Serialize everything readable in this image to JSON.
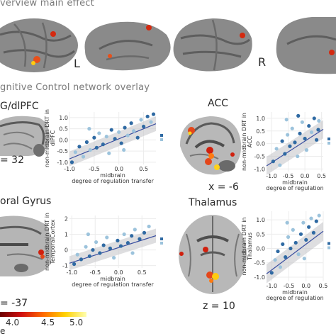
{
  "header": {
    "main_effect_title": "verview main effect",
    "network_overlay_title": "gnitive Control network overlay",
    "left_label": "L",
    "right_label": "R"
  },
  "panels": {
    "dlpfc": {
      "title": "G/dlPFC",
      "coord": "= 32"
    },
    "acc": {
      "title": "ACC",
      "coord": "x = -6"
    },
    "temporal": {
      "title": "oral Gyrus",
      "coord": "= -37"
    },
    "thalamus": {
      "title": "Thalamus",
      "coord": "z = 10"
    }
  },
  "colorbar": {
    "ticks": [
      "4.0",
      "4.5",
      "5.0"
    ],
    "corner_label": "e",
    "colors": [
      "#6a0000",
      "#d01010",
      "#ff6a00",
      "#ffd000",
      "#ffffb0"
    ]
  },
  "colors": {
    "brain": "#8a8a8a",
    "sulci": "#5e5e5e",
    "point_dark": "#2f6aa3",
    "point_light": "#9cc3dc",
    "regression_line": "#3b4fa0",
    "ci_band": "#c8c8cc"
  },
  "chart_data": [
    {
      "type": "scatter",
      "panel": "dlpfc",
      "title": "",
      "xlabel": "midbrain\ndegree of regulation transfer",
      "ylabel": "non-midbrain DRT in\ndlPFC",
      "xlabel_lines": [
        "midbrain",
        "degree of regulation transfer"
      ],
      "ylabel_lines": [
        "non-midbrain DRT in",
        "dlPFC"
      ],
      "xlim": [
        -1.0,
        0.75
      ],
      "ylim": [
        -1.1,
        1.25
      ],
      "xticks": [
        "-1.0",
        "-0.5",
        "0.0",
        "0.5"
      ],
      "xtick_values": [
        -1.0,
        -0.5,
        0.0,
        0.5
      ],
      "yticks": [
        "-1.0",
        "-0.5",
        "0.0",
        "0.5",
        "1.0"
      ],
      "ytick_values": [
        -1.0,
        -0.5,
        0.0,
        0.5,
        1.0
      ],
      "fit": {
        "slope": 0.9,
        "intercept": 0.05,
        "ci": 0.22
      },
      "points": [
        {
          "x": -0.95,
          "y": -1.0,
          "g": 0
        },
        {
          "x": -0.88,
          "y": -0.55,
          "g": 1
        },
        {
          "x": -0.8,
          "y": -0.3,
          "g": 0
        },
        {
          "x": -0.72,
          "y": -0.75,
          "g": 1
        },
        {
          "x": -0.65,
          "y": -0.1,
          "g": 0
        },
        {
          "x": -0.58,
          "y": -0.45,
          "g": 1
        },
        {
          "x": -0.5,
          "y": 0.1,
          "g": 0
        },
        {
          "x": -0.45,
          "y": -0.35,
          "g": 0
        },
        {
          "x": -0.4,
          "y": 0.3,
          "g": 1
        },
        {
          "x": -0.32,
          "y": -0.2,
          "g": 0
        },
        {
          "x": -0.25,
          "y": 0.15,
          "g": 1
        },
        {
          "x": -0.2,
          "y": -0.6,
          "g": 1
        },
        {
          "x": -0.15,
          "y": 0.45,
          "g": 0
        },
        {
          "x": -0.08,
          "y": 0.05,
          "g": 0
        },
        {
          "x": 0.0,
          "y": 0.35,
          "g": 1
        },
        {
          "x": 0.05,
          "y": -0.15,
          "g": 0
        },
        {
          "x": 0.12,
          "y": 0.55,
          "g": 0
        },
        {
          "x": 0.18,
          "y": 0.2,
          "g": 1
        },
        {
          "x": 0.25,
          "y": 0.75,
          "g": 0
        },
        {
          "x": 0.3,
          "y": 0.4,
          "g": 1
        },
        {
          "x": 0.38,
          "y": 0.1,
          "g": 0
        },
        {
          "x": 0.45,
          "y": 0.9,
          "g": 1
        },
        {
          "x": 0.5,
          "y": 0.6,
          "g": 0
        },
        {
          "x": 0.58,
          "y": 1.05,
          "g": 0
        },
        {
          "x": 0.65,
          "y": 0.8,
          "g": 1
        },
        {
          "x": -0.6,
          "y": 0.5,
          "g": 1
        },
        {
          "x": 0.1,
          "y": -0.45,
          "g": 1
        },
        {
          "x": 0.7,
          "y": 1.15,
          "g": 0
        }
      ]
    },
    {
      "type": "scatter",
      "panel": "acc",
      "title": "",
      "xlabel": "midbrain\ndegree of regulation",
      "ylabel": "non-midbrain DRT in\nACC",
      "xlabel_lines": [
        "midbrain",
        "degree of regulation"
      ],
      "ylabel_lines": [
        "non-midbrain DRT in",
        "ACC"
      ],
      "xlim": [
        -1.15,
        0.55
      ],
      "ylim": [
        -1.1,
        1.25
      ],
      "xticks": [
        "-1.0",
        "-0.5",
        "0.0",
        "0.5"
      ],
      "xtick_values": [
        -1.0,
        -0.5,
        0.0,
        0.5
      ],
      "yticks": [
        "-1.0",
        "-0.5",
        "0.0",
        "0.5",
        "1.0"
      ],
      "ytick_values": [
        -1.0,
        -0.5,
        0.0,
        0.5,
        1.0
      ],
      "fit": {
        "slope": 0.85,
        "intercept": 0.1,
        "ci": 0.24
      },
      "points": [
        {
          "x": -0.95,
          "y": -0.7,
          "g": 0
        },
        {
          "x": -0.85,
          "y": -0.2,
          "g": 1
        },
        {
          "x": -0.75,
          "y": -0.85,
          "g": 1
        },
        {
          "x": -0.68,
          "y": 0.1,
          "g": 0
        },
        {
          "x": -0.6,
          "y": -0.4,
          "g": 0
        },
        {
          "x": -0.52,
          "y": 0.35,
          "g": 1
        },
        {
          "x": -0.45,
          "y": -0.1,
          "g": 0
        },
        {
          "x": -0.38,
          "y": 0.6,
          "g": 1
        },
        {
          "x": -0.3,
          "y": 0.05,
          "g": 0
        },
        {
          "x": -0.22,
          "y": -0.5,
          "g": 1
        },
        {
          "x": -0.15,
          "y": 0.4,
          "g": 0
        },
        {
          "x": -0.08,
          "y": 0.85,
          "g": 1
        },
        {
          "x": 0.0,
          "y": 0.2,
          "g": 0
        },
        {
          "x": 0.05,
          "y": -0.25,
          "g": 1
        },
        {
          "x": 0.12,
          "y": 0.7,
          "g": 0
        },
        {
          "x": 0.2,
          "y": 0.45,
          "g": 1
        },
        {
          "x": 0.28,
          "y": 1.0,
          "g": 0
        },
        {
          "x": 0.35,
          "y": 0.15,
          "g": 0
        },
        {
          "x": 0.42,
          "y": 0.9,
          "g": 1
        },
        {
          "x": -0.55,
          "y": 0.95,
          "g": 1
        },
        {
          "x": -0.2,
          "y": 1.1,
          "g": 0
        },
        {
          "x": 0.4,
          "y": 0.55,
          "g": 0
        }
      ]
    },
    {
      "type": "scatter",
      "panel": "temporal",
      "title": "",
      "xlabel": "midbrain\ndegree of regulation transfer",
      "ylabel": "non-midbrain DRT in\nTemporalCortex",
      "xlabel_lines": [
        "midbrain",
        "degree of regulation transfer"
      ],
      "ylabel_lines": [
        "non-midbrain DRT in",
        "TemporalCortex"
      ],
      "xlim": [
        -1.05,
        0.8
      ],
      "ylim": [
        -1.15,
        2.2
      ],
      "xticks": [
        "-1.0",
        "-0.5",
        "0.0",
        "0.5"
      ],
      "xtick_values": [
        -1.0,
        -0.5,
        0.0,
        0.5
      ],
      "yticks": [
        "-1",
        "0",
        "1",
        "2"
      ],
      "ytick_values": [
        -1,
        0,
        1,
        2
      ],
      "fit": {
        "slope": 0.95,
        "intercept": 0.15,
        "ci": 0.3
      },
      "points": [
        {
          "x": -0.95,
          "y": -0.9,
          "g": 0
        },
        {
          "x": -0.88,
          "y": -0.3,
          "g": 1
        },
        {
          "x": -0.8,
          "y": -0.6,
          "g": 0
        },
        {
          "x": -0.7,
          "y": 0.2,
          "g": 1
        },
        {
          "x": -0.62,
          "y": -0.4,
          "g": 0
        },
        {
          "x": -0.55,
          "y": 0.0,
          "g": 0
        },
        {
          "x": -0.48,
          "y": 0.5,
          "g": 1
        },
        {
          "x": -0.4,
          "y": -0.2,
          "g": 0
        },
        {
          "x": -0.32,
          "y": 0.3,
          "g": 0
        },
        {
          "x": -0.25,
          "y": 0.8,
          "g": 1
        },
        {
          "x": -0.18,
          "y": 0.1,
          "g": 0
        },
        {
          "x": -0.1,
          "y": -0.5,
          "g": 1
        },
        {
          "x": -0.02,
          "y": 0.6,
          "g": 0
        },
        {
          "x": 0.05,
          "y": 0.25,
          "g": 0
        },
        {
          "x": 0.12,
          "y": 1.0,
          "g": 1
        },
        {
          "x": 0.2,
          "y": 0.45,
          "g": 0
        },
        {
          "x": 0.28,
          "y": 0.9,
          "g": 0
        },
        {
          "x": 0.35,
          "y": 1.3,
          "g": 1
        },
        {
          "x": 0.45,
          "y": 0.7,
          "g": 0
        },
        {
          "x": 0.55,
          "y": 1.1,
          "g": 0
        },
        {
          "x": 0.65,
          "y": 1.5,
          "g": 1
        },
        {
          "x": -0.65,
          "y": 1.0,
          "g": 1
        },
        {
          "x": 0.3,
          "y": -0.2,
          "g": 1
        }
      ]
    },
    {
      "type": "scatter",
      "panel": "thalamus",
      "title": "",
      "xlabel": "midbrain\ndegree of regulation",
      "ylabel": "non-midbrain DRT in\nThalamus",
      "xlabel_lines": [
        "midbrain",
        "degree of regulation"
      ],
      "ylabel_lines": [
        "non-midbrain DRT in",
        "Thalamus"
      ],
      "xlim": [
        -1.15,
        0.5
      ],
      "ylim": [
        -1.15,
        1.3
      ],
      "xticks": [
        "-1.0",
        "-0.5",
        "0.0",
        "0.5"
      ],
      "xtick_values": [
        -1.0,
        -0.5,
        0.0,
        0.5
      ],
      "yticks": [
        "-1.0",
        "-0.5",
        "0.0",
        "0.5",
        "1.0"
      ],
      "ytick_values": [
        -1.0,
        -0.5,
        0.0,
        0.5,
        1.0
      ],
      "fit": {
        "slope": 0.9,
        "intercept": 0.15,
        "ci": 0.22
      },
      "points": [
        {
          "x": -1.0,
          "y": -0.85,
          "g": 0
        },
        {
          "x": -0.9,
          "y": -0.4,
          "g": 1
        },
        {
          "x": -0.82,
          "y": -0.1,
          "g": 0
        },
        {
          "x": -0.75,
          "y": -0.65,
          "g": 1
        },
        {
          "x": -0.68,
          "y": 0.15,
          "g": 0
        },
        {
          "x": -0.6,
          "y": -0.3,
          "g": 0
        },
        {
          "x": -0.52,
          "y": 0.4,
          "g": 1
        },
        {
          "x": -0.45,
          "y": 0.0,
          "g": 0
        },
        {
          "x": -0.38,
          "y": 0.65,
          "g": 1
        },
        {
          "x": -0.3,
          "y": 0.2,
          "g": 0
        },
        {
          "x": -0.22,
          "y": -0.2,
          "g": 1
        },
        {
          "x": -0.15,
          "y": 0.5,
          "g": 0
        },
        {
          "x": -0.08,
          "y": 0.9,
          "g": 1
        },
        {
          "x": 0.0,
          "y": 0.3,
          "g": 0
        },
        {
          "x": 0.08,
          "y": 0.75,
          "g": 0
        },
        {
          "x": 0.15,
          "y": 1.05,
          "g": 1
        },
        {
          "x": 0.22,
          "y": 0.55,
          "g": 0
        },
        {
          "x": 0.3,
          "y": 0.95,
          "g": 0
        },
        {
          "x": 0.38,
          "y": 1.15,
          "g": 1
        },
        {
          "x": -0.55,
          "y": 0.9,
          "g": 1
        },
        {
          "x": -0.05,
          "y": -0.35,
          "g": 1
        }
      ]
    }
  ]
}
